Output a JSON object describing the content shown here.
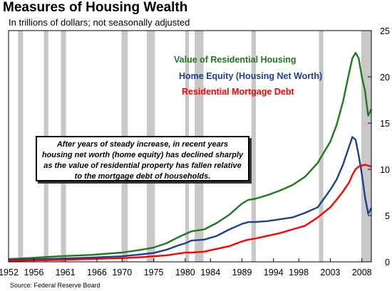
{
  "header": {
    "title": "Measures of Housing Wealth",
    "subtitle": "In trillions of dollars; not seasonally adjusted"
  },
  "source": "Source: Federal Reserve Board",
  "callout": "After years of steady increase, in recent years housing net worth (home equity) has declined sharply as the value of residential property has fallen relative to the mortgage debt of households.",
  "colors": {
    "value": "#1e7a1e",
    "equity": "#1f3f8f",
    "debt": "#ff0000",
    "recession": "#c8c8c8"
  },
  "chart_data": {
    "type": "line",
    "title": "Measures of Housing Wealth",
    "subtitle": "In trillions of dollars; not seasonally adjusted",
    "xlabel": "",
    "ylabel": "",
    "xlim": [
      1952,
      2009.5
    ],
    "ylim": [
      0,
      25
    ],
    "yaxis_position": "right",
    "x_tick_labels": [
      "1952",
      "1956",
      "1961",
      "1966",
      "1970",
      "1975",
      "1980",
      "1984",
      "1989",
      "1994",
      "1998",
      "2003",
      "2008"
    ],
    "x_tick_values": [
      1952,
      1956,
      1961,
      1966,
      1970,
      1975,
      1980,
      1984,
      1989,
      1994,
      1998,
      2003,
      2008
    ],
    "y_ticks": [
      0,
      5,
      10,
      15,
      20,
      25
    ],
    "grid": false,
    "legend": "upper-center",
    "recessions": [
      [
        1953.5,
        1954.3
      ],
      [
        1957.6,
        1958.3
      ],
      [
        1960.3,
        1961.1
      ],
      [
        1969.9,
        1970.9
      ],
      [
        1973.9,
        1975.2
      ],
      [
        1980.0,
        1980.6
      ],
      [
        1981.5,
        1982.9
      ],
      [
        1990.5,
        1991.2
      ],
      [
        2001.2,
        2001.9
      ],
      [
        2007.9,
        2009.5
      ]
    ],
    "series": [
      {
        "name": "Value of Residential Housing",
        "x": [
          1952,
          1955,
          1960,
          1965,
          1970,
          1973,
          1975,
          1977,
          1979,
          1980,
          1981,
          1983,
          1985,
          1987,
          1989,
          1990,
          1991,
          1993,
          1995,
          1997,
          1999,
          2001,
          2003,
          2004,
          2005,
          2006,
          2006.5,
          2007,
          2007.5,
          2008,
          2008.5,
          2009,
          2009.5
        ],
        "y": [
          0.3,
          0.4,
          0.6,
          0.75,
          1.0,
          1.3,
          1.55,
          2.0,
          2.7,
          3.0,
          3.3,
          3.5,
          4.2,
          5.1,
          6.3,
          6.7,
          6.8,
          7.2,
          7.7,
          8.3,
          9.2,
          10.7,
          13.0,
          14.8,
          17.3,
          20.5,
          22.0,
          22.6,
          22.0,
          20.0,
          18.5,
          15.8,
          16.5
        ]
      },
      {
        "name": "Home Equity (Housing Net Worth)",
        "x": [
          1952,
          1955,
          1960,
          1965,
          1970,
          1973,
          1975,
          1977,
          1979,
          1980,
          1981,
          1983,
          1985,
          1987,
          1989,
          1990,
          1991,
          1993,
          1995,
          1997,
          1999,
          2001,
          2003,
          2004,
          2005,
          2006,
          2006.5,
          2007,
          2007.5,
          2008,
          2008.5,
          2009,
          2009.5
        ],
        "y": [
          0.2,
          0.25,
          0.35,
          0.45,
          0.6,
          0.8,
          0.95,
          1.3,
          1.8,
          2.0,
          2.3,
          2.4,
          2.8,
          3.5,
          4.1,
          4.3,
          4.3,
          4.4,
          4.6,
          4.8,
          5.3,
          5.9,
          7.8,
          8.9,
          10.5,
          12.5,
          13.5,
          13.2,
          11.5,
          9.5,
          7.0,
          5.2,
          5.8
        ]
      },
      {
        "name": "Residential  Mortgage Debt",
        "x": [
          1952,
          1955,
          1960,
          1965,
          1970,
          1973,
          1975,
          1977,
          1979,
          1980,
          1981,
          1983,
          1985,
          1987,
          1989,
          1990,
          1991,
          1993,
          1995,
          1997,
          1999,
          2001,
          2003,
          2004,
          2005,
          2006,
          2006.5,
          2007,
          2007.5,
          2008,
          2008.5,
          2009,
          2009.5
        ],
        "y": [
          0.1,
          0.15,
          0.2,
          0.3,
          0.4,
          0.5,
          0.6,
          0.7,
          0.9,
          1.0,
          1.0,
          1.1,
          1.4,
          1.7,
          2.2,
          2.4,
          2.5,
          2.8,
          3.1,
          3.5,
          3.9,
          4.8,
          5.9,
          6.7,
          7.6,
          8.6,
          9.4,
          10.0,
          10.3,
          10.4,
          10.5,
          10.4,
          10.3
        ]
      }
    ]
  }
}
